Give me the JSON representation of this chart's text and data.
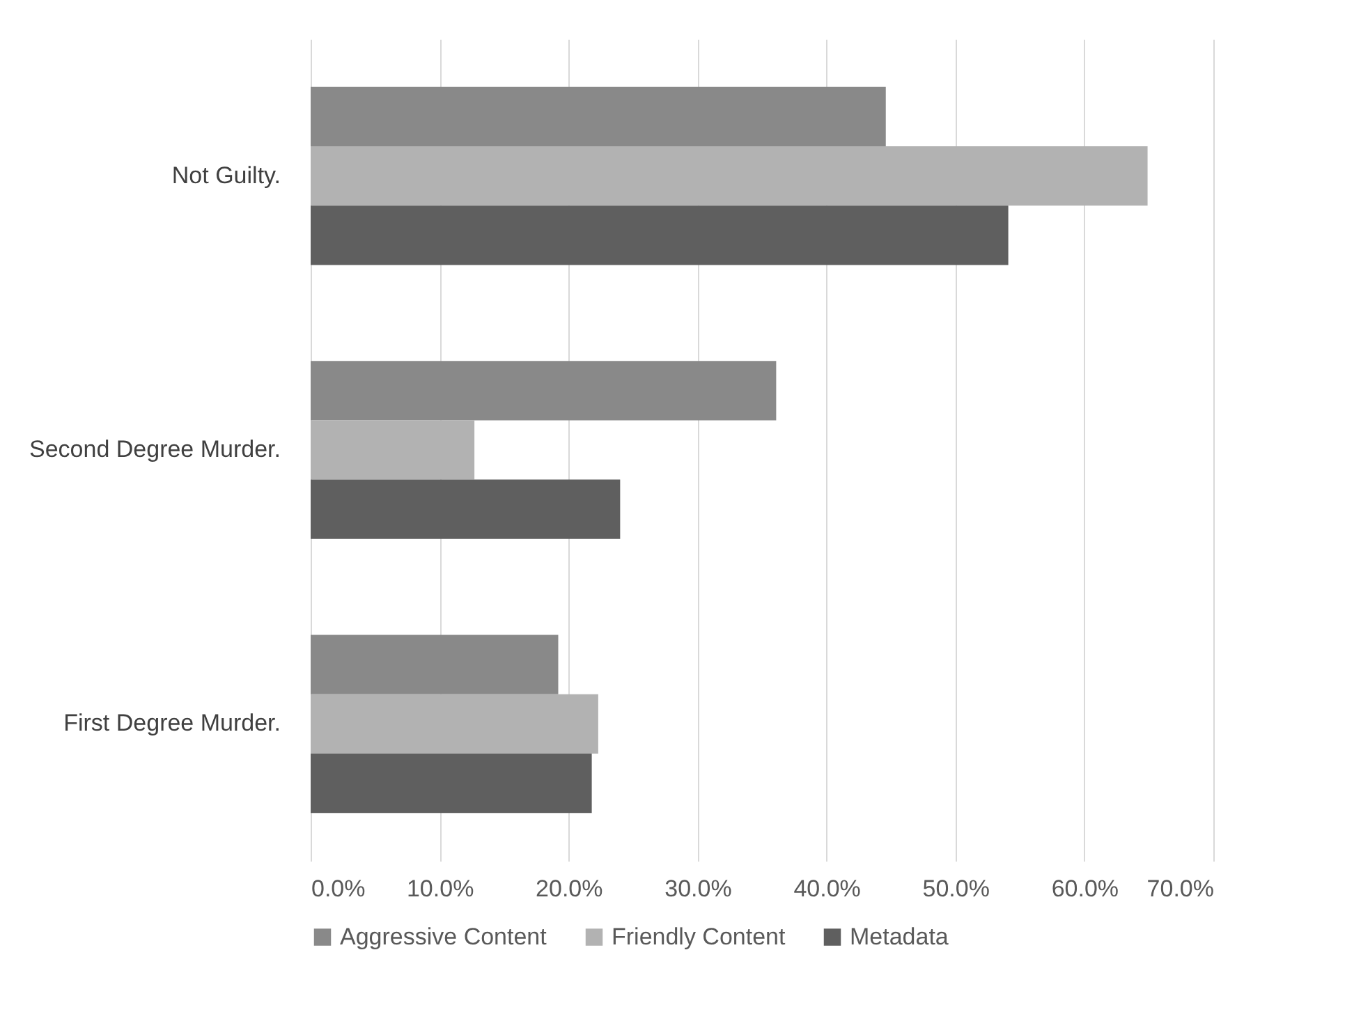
{
  "chart_data": {
    "type": "bar",
    "orientation": "horizontal",
    "categories": [
      "Not Guilty.",
      "Second Degree Murder.",
      "First Degree Murder."
    ],
    "series": [
      {
        "name": "Aggressive Content",
        "color": "#898989",
        "values": [
          44.6,
          36.1,
          19.2
        ]
      },
      {
        "name": "Friendly Content",
        "color": "#b2b2b2",
        "values": [
          64.9,
          12.7,
          22.3
        ]
      },
      {
        "name": "Metadata",
        "color": "#5f5f5f",
        "values": [
          54.1,
          24.0,
          21.8
        ]
      }
    ],
    "xlim": [
      0,
      70
    ],
    "xticks": [
      {
        "value": 0,
        "label": "0.0%"
      },
      {
        "value": 10,
        "label": "10.0%"
      },
      {
        "value": 20,
        "label": "20.0%"
      },
      {
        "value": 30,
        "label": "30.0%"
      },
      {
        "value": 40,
        "label": "40.0%"
      },
      {
        "value": 50,
        "label": "50.0%"
      },
      {
        "value": 60,
        "label": "60.0%"
      },
      {
        "value": 70,
        "label": "70.0%"
      }
    ],
    "grid": "x",
    "legend": "bottom"
  }
}
